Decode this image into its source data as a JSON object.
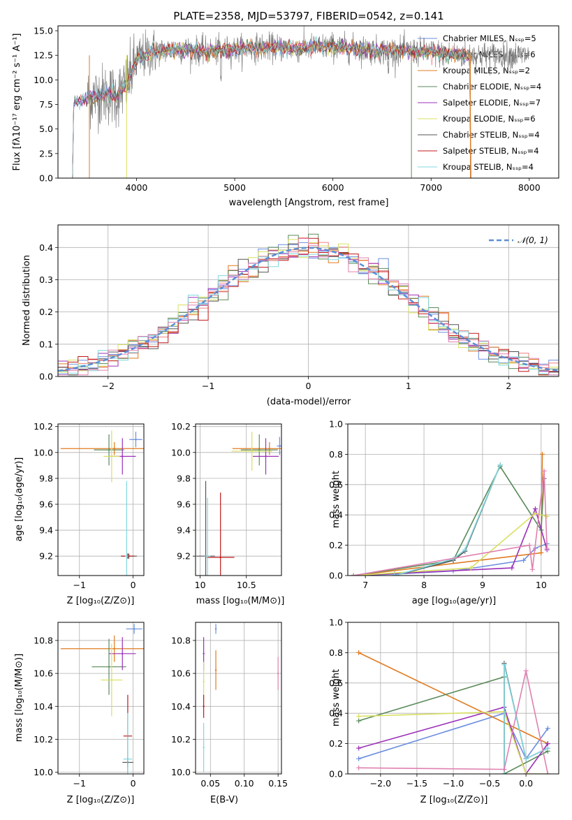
{
  "colors": {
    "axes": "#000000",
    "grid": "#b0b0b0",
    "series": [
      "#6b8ee0",
      "#f08080",
      "#e07b20",
      "#5a8a5a",
      "#9b30b8",
      "#d8e060",
      "#555555",
      "#c01818",
      "#80d8e0",
      "#e080b0",
      "#808080"
    ]
  },
  "chart_data": [
    {
      "id": "spectrum",
      "type": "line",
      "title": "PLATE=2358, MJD=53797, FIBERID=0542, z=0.141",
      "xlabel": "wavelength [Angstrom, rest frame]",
      "ylabel": "Flux [fλ10⁻¹⁷ erg cm⁻² s⁻¹ A⁻¹]",
      "xlim": [
        3200,
        8300
      ],
      "ylim": [
        0,
        15.5
      ],
      "xticks": [
        4000,
        5000,
        6000,
        7000,
        8000
      ],
      "yticks": [
        0.0,
        2.5,
        5.0,
        7.5,
        10.0,
        12.5,
        15.0
      ],
      "ytick_labels": [
        "0.0",
        "2.5",
        "5.0",
        "7.5",
        "10.0",
        "12.5",
        "15.0"
      ],
      "grid": false,
      "legend_position": "right",
      "legend": [
        "Chabrier MILES, Nₛₛₚ=5",
        "Salpeter MILES, Nₛₛₚ=6",
        "Kroupa MILES, Nₛₛₚ=2",
        "Chabrier ELODIE, Nₛₛₚ=4",
        "Salpeter ELODIE, Nₛₛₚ=7",
        "Kroupa ELODIE, Nₛₛₚ=6",
        "Chabrier STELIB, Nₛₛₚ=4",
        "Salpeter STELIB, Nₛₛₚ=4",
        "Kroupa STELIB, Nₛₛₚ=4"
      ],
      "model_continuum": {
        "x": [
          3300,
          3400,
          3500,
          3600,
          3700,
          3800,
          3900,
          4000,
          4100,
          4200,
          4400,
          4600,
          4800,
          5000,
          5200,
          5400,
          5600,
          5800,
          6000,
          6200,
          6400,
          6600,
          6800,
          7000,
          7200,
          7400
        ],
        "y": [
          7.5,
          7.6,
          8.2,
          8.4,
          8.6,
          8.3,
          9.5,
          12.0,
          12.6,
          12.9,
          13.1,
          13.0,
          12.9,
          13.1,
          13.3,
          13.3,
          13.2,
          13.3,
          13.4,
          13.2,
          13.0,
          13.0,
          12.9,
          12.8,
          12.6,
          12.5
        ]
      },
      "data_x_range": [
        3500,
        8000
      ],
      "data_y_range_approx": [
        5.0,
        15.5
      ]
    },
    {
      "id": "residuals",
      "type": "line",
      "xlabel": "(data-model)/error",
      "ylabel": "Normed distribution",
      "xlim": [
        -2.5,
        2.5
      ],
      "ylim": [
        0,
        0.47
      ],
      "xticks": [
        -2,
        -1,
        0,
        1,
        2
      ],
      "yticks": [
        0.0,
        0.1,
        0.2,
        0.3,
        0.4
      ],
      "ytick_labels": [
        "0.0",
        "0.1",
        "0.2",
        "0.3",
        "0.4"
      ],
      "grid": true,
      "legend_position": "top-right",
      "reference_series": {
        "name": "𝒩(0, 1)",
        "style": "dashed",
        "mu": 0,
        "sigma": 1
      },
      "bins": [
        -2.5,
        -2.4,
        -2.3,
        -2.2,
        -2.1,
        -2.0,
        -1.9,
        -1.8,
        -1.7,
        -1.6,
        -1.5,
        -1.4,
        -1.3,
        -1.2,
        -1.1,
        -1.0,
        -0.9,
        -0.8,
        -0.7,
        -0.6,
        -0.5,
        -0.4,
        -0.3,
        -0.2,
        -0.1,
        0.0,
        0.1,
        0.2,
        0.3,
        0.4,
        0.5,
        0.6,
        0.7,
        0.8,
        0.9,
        1.0,
        1.1,
        1.2,
        1.3,
        1.4,
        1.5,
        1.6,
        1.7,
        1.8,
        1.9,
        2.0,
        2.1,
        2.2,
        2.3,
        2.4,
        2.5
      ]
    },
    {
      "id": "age-vs-z",
      "type": "scatter",
      "xlabel": "Z [log₁₀(Z/Z⊙)]",
      "ylabel": "age  [log₁₀(age/yr)]",
      "xlim": [
        -1.4,
        0.2
      ],
      "ylim": [
        9.05,
        10.22
      ],
      "xticks": [
        -1,
        0
      ],
      "yticks": [
        9.2,
        9.4,
        9.6,
        9.8,
        10.0,
        10.2
      ],
      "ytick_labels": [
        "9.2",
        "9.4",
        "9.6",
        "9.8",
        "10.0",
        "10.2"
      ],
      "grid": true,
      "points": [
        {
          "x": 0.05,
          "y": 10.1,
          "xerr": 0.12,
          "yerr": 0.06,
          "color": 0
        },
        {
          "x": -0.35,
          "y": 10.03,
          "xerr": 1.0,
          "yerr": 0.05,
          "color": 2
        },
        {
          "x": -0.45,
          "y": 10.02,
          "xerr": 0.28,
          "yerr": 0.12,
          "color": 3
        },
        {
          "x": -0.2,
          "y": 9.97,
          "xerr": 0.25,
          "yerr": 0.14,
          "color": 4
        },
        {
          "x": -0.4,
          "y": 9.97,
          "xerr": 0.15,
          "yerr": 0.2,
          "color": 5
        },
        {
          "x": -0.08,
          "y": 9.2,
          "xerr": 0.15,
          "yerr": 0.02,
          "color": 6
        },
        {
          "x": -0.1,
          "y": 9.2,
          "xerr": 0.12,
          "yerr": 0.02,
          "color": 7
        },
        {
          "x": -0.12,
          "y": 9.2,
          "xerr": 0.03,
          "yerr": 0.58,
          "color": 8
        }
      ]
    },
    {
      "id": "age-vs-mass",
      "type": "scatter",
      "xlabel": "mass [log₁₀(M/M⊙)]",
      "ylabel": "",
      "xlim": [
        9.95,
        10.88
      ],
      "ylim": [
        9.05,
        10.22
      ],
      "xticks": [
        10.0,
        10.5
      ],
      "yticks": [
        9.2,
        9.4,
        9.6,
        9.8,
        10.0,
        10.2
      ],
      "ytick_labels": [
        "9.2",
        "9.4",
        "9.6",
        "9.8",
        "10.0",
        "10.2"
      ],
      "grid": true,
      "points": [
        {
          "x": 10.86,
          "y": 10.05,
          "xerr": 0.03,
          "yerr": 0.07,
          "color": 0
        },
        {
          "x": 10.75,
          "y": 10.03,
          "xerr": 0.4,
          "yerr": 0.05,
          "color": 2
        },
        {
          "x": 10.64,
          "y": 10.02,
          "xerr": 0.2,
          "yerr": 0.12,
          "color": 3
        },
        {
          "x": 10.71,
          "y": 9.97,
          "xerr": 0.14,
          "yerr": 0.14,
          "color": 4
        },
        {
          "x": 10.56,
          "y": 10.01,
          "xerr": 0.22,
          "yerr": 0.15,
          "color": 5
        },
        {
          "x": 10.06,
          "y": 9.2,
          "xerr": 0.1,
          "yerr": 0.58,
          "color": 6
        },
        {
          "x": 10.22,
          "y": 9.19,
          "xerr": 0.15,
          "yerr": 0.5,
          "color": 7
        },
        {
          "x": 10.08,
          "y": 9.2,
          "xerr": 0.03,
          "yerr": 0.45,
          "color": 8
        }
      ]
    },
    {
      "id": "weight-vs-age",
      "type": "line",
      "xlabel": "age  [log₁₀(age/yr)]",
      "ylabel": "mass weight",
      "xlim": [
        6.7,
        10.3
      ],
      "ylim": [
        0,
        1.0
      ],
      "xticks": [
        7,
        8,
        9,
        10
      ],
      "yticks": [
        0.0,
        0.2,
        0.4,
        0.6,
        0.8,
        1.0
      ],
      "ytick_labels": [
        "0.0",
        "0.2",
        "0.4",
        "0.6",
        "0.8",
        "1.0"
      ],
      "grid": true,
      "series": [
        {
          "color": 0,
          "x": [
            6.8,
            7.5,
            8.5,
            9.7,
            9.9,
            10.1
          ],
          "y": [
            0.0,
            0.01,
            0.03,
            0.1,
            0.18,
            0.21
          ]
        },
        {
          "color": 2,
          "x": [
            6.8,
            10.0,
            10.02
          ],
          "y": [
            0.0,
            0.15,
            0.8
          ]
        },
        {
          "color": 3,
          "x": [
            6.8,
            8.5,
            9.3,
            10.0,
            10.05
          ],
          "y": [
            0.0,
            0.1,
            0.72,
            0.3,
            0.64
          ]
        },
        {
          "color": 4,
          "x": [
            6.8,
            9.5,
            9.9,
            10.1
          ],
          "y": [
            0.0,
            0.05,
            0.44,
            0.17
          ]
        },
        {
          "color": 5,
          "x": [
            6.8,
            8.8,
            9.9,
            10.1
          ],
          "y": [
            0.0,
            0.05,
            0.41,
            0.39
          ]
        },
        {
          "color": 6,
          "x": [
            7.5,
            8.5,
            8.7,
            9.3
          ],
          "y": [
            0.0,
            0.1,
            0.16,
            0.73
          ]
        },
        {
          "color": 8,
          "x": [
            7.5,
            8.5,
            8.7,
            9.3
          ],
          "y": [
            0.0,
            0.11,
            0.17,
            0.73
          ]
        },
        {
          "color": 9,
          "x": [
            6.8,
            9.8,
            9.85,
            10.05,
            10.1
          ],
          "y": [
            0.0,
            0.2,
            0.04,
            0.69,
            0.18
          ]
        }
      ]
    },
    {
      "id": "mass-vs-z",
      "type": "scatter",
      "xlabel": "Z [log₁₀(Z/Z⊙)]",
      "ylabel": "mass [log₁₀(M/M⊙)]",
      "xlim": [
        -1.4,
        0.2
      ],
      "ylim": [
        9.99,
        10.91
      ],
      "xticks": [
        -1,
        0
      ],
      "yticks": [
        10.0,
        10.2,
        10.4,
        10.6,
        10.8
      ],
      "ytick_labels": [
        "10.0",
        "10.2",
        "10.4",
        "10.6",
        "10.8"
      ],
      "grid": true,
      "points": [
        {
          "x": 0.02,
          "y": 10.87,
          "xerr": 0.15,
          "yerr": 0.03,
          "color": 0
        },
        {
          "x": -0.35,
          "y": 10.75,
          "xerr": 1.0,
          "yerr": 0.08,
          "color": 2
        },
        {
          "x": -0.45,
          "y": 10.64,
          "xerr": 0.32,
          "yerr": 0.17,
          "color": 3
        },
        {
          "x": -0.2,
          "y": 10.72,
          "xerr": 0.25,
          "yerr": 0.1,
          "color": 4
        },
        {
          "x": -0.4,
          "y": 10.56,
          "xerr": 0.2,
          "yerr": 0.22,
          "color": 5
        },
        {
          "x": -0.1,
          "y": 10.06,
          "xerr": 0.1,
          "yerr": 0.03,
          "color": 6
        },
        {
          "x": -0.1,
          "y": 10.22,
          "xerr": 0.08,
          "yerr": 0.25,
          "color": 7
        },
        {
          "x": -0.1,
          "y": 10.08,
          "xerr": 0.08,
          "yerr": 0.28,
          "color": 8
        }
      ]
    },
    {
      "id": "mass-vs-ebv",
      "type": "scatter",
      "xlabel": "E(B-V)",
      "ylabel": "",
      "xlim": [
        0.028,
        0.155
      ],
      "ylim": [
        9.99,
        10.91
      ],
      "xticks": [
        0.05,
        0.1,
        0.15
      ],
      "xtick_labels": [
        "0.05",
        "0.10",
        "0.15"
      ],
      "yticks": [
        10.0,
        10.2,
        10.4,
        10.6,
        10.8
      ],
      "ytick_labels": [
        "10.0",
        "10.2",
        "10.4",
        "10.6",
        "10.8"
      ],
      "grid": true,
      "points": [
        {
          "x": 0.058,
          "y": 10.87,
          "xerr": 0.0,
          "yerr": 0.03,
          "color": 0
        },
        {
          "x": 0.058,
          "y": 10.62,
          "xerr": 0.0,
          "yerr": 0.12,
          "color": 2
        },
        {
          "x": 0.04,
          "y": 10.72,
          "xerr": 0.0,
          "yerr": 0.1,
          "color": 4
        },
        {
          "x": 0.04,
          "y": 10.55,
          "xerr": 0.0,
          "yerr": 0.12,
          "color": 5
        },
        {
          "x": 0.04,
          "y": 10.4,
          "xerr": 0.0,
          "yerr": 0.07,
          "color": 7
        },
        {
          "x": 0.04,
          "y": 10.15,
          "xerr": 0.0,
          "yerr": 0.15,
          "color": 8
        },
        {
          "x": 0.15,
          "y": 10.6,
          "xerr": 0.0,
          "yerr": 0.1,
          "color": 9
        }
      ]
    },
    {
      "id": "weight-vs-z",
      "type": "line",
      "xlabel": "Z [log₁₀(Z/Z⊙)]",
      "ylabel": "mass weight",
      "xlim": [
        -2.45,
        0.45
      ],
      "ylim": [
        0,
        1.0
      ],
      "xticks": [
        -2.0,
        -1.5,
        -1.0,
        -0.5,
        0.0
      ],
      "xtick_labels": [
        "−2.0",
        "−1.5",
        "−1.0",
        "−0.5",
        "0.0"
      ],
      "yticks": [
        0.0,
        0.2,
        0.4,
        0.6,
        0.8,
        1.0
      ],
      "ytick_labels": [
        "0.0",
        "0.2",
        "0.4",
        "0.6",
        "0.8",
        "1.0"
      ],
      "grid": true,
      "series": [
        {
          "color": 0,
          "x": [
            -2.3,
            -0.3,
            0.0,
            0.3
          ],
          "y": [
            0.1,
            0.4,
            0.1,
            0.3
          ]
        },
        {
          "color": 2,
          "x": [
            -2.3,
            0.3
          ],
          "y": [
            0.8,
            0.2
          ]
        },
        {
          "color": 3,
          "x": [
            -2.3,
            -0.3,
            -0.3,
            0.3
          ],
          "y": [
            0.35,
            0.64,
            0.0,
            0.15
          ]
        },
        {
          "color": 4,
          "x": [
            -2.3,
            -0.3,
            0.0,
            0.3
          ],
          "y": [
            0.17,
            0.44,
            0.0,
            0.2
          ]
        },
        {
          "color": 5,
          "x": [
            -2.3,
            -0.3,
            0.0,
            0.3
          ],
          "y": [
            0.38,
            0.41,
            0.0,
            0.0
          ]
        },
        {
          "color": 6,
          "x": [
            -0.3,
            -0.3,
            0.0,
            0.3
          ],
          "y": [
            0.0,
            0.73,
            0.1,
            0.17
          ]
        },
        {
          "color": 8,
          "x": [
            -0.3,
            -0.3,
            0.0,
            0.3
          ],
          "y": [
            0.0,
            0.72,
            0.1,
            0.17
          ]
        },
        {
          "color": 9,
          "x": [
            -2.3,
            -0.3,
            0.0,
            0.3
          ],
          "y": [
            0.04,
            0.03,
            0.68,
            0.0
          ]
        }
      ]
    }
  ]
}
